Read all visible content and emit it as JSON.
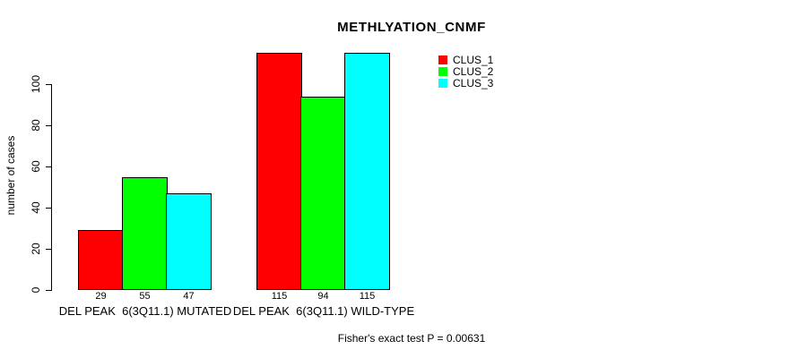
{
  "chart_data": {
    "type": "bar",
    "title": "METHLYATION_CNMF",
    "ylabel": "number of cases",
    "xlabel": "",
    "categories": [
      "DEL PEAK  6(3Q11.1) MUTATED",
      "DEL PEAK  6(3Q11.1) WILD-TYPE"
    ],
    "series": [
      {
        "name": "CLUS_1",
        "color": "#ff0000",
        "values": [
          29,
          115
        ]
      },
      {
        "name": "CLUS_2",
        "color": "#00ff00",
        "values": [
          55,
          94
        ]
      },
      {
        "name": "CLUS_3",
        "color": "#00ffff",
        "values": [
          47,
          115
        ]
      }
    ],
    "yticks": [
      0,
      20,
      40,
      60,
      80,
      100
    ],
    "ylim": [
      0,
      115
    ],
    "grid": false,
    "legend_position": "top-right",
    "bar_value_labels": true,
    "annotation": "Fisher's exact test P = 0.00631",
    "axis_color": "#000000",
    "background_color": "#ffffff"
  }
}
